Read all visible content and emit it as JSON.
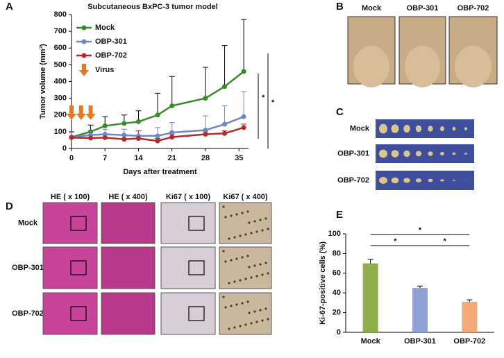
{
  "chart_data": [
    {
      "type": "line",
      "panel_label": "A",
      "title": "Subcutaneous BxPC-3 tumor model",
      "x_label": "Days after treatment",
      "y_label": "Tumor volume (mm³)",
      "x": [
        0,
        4,
        7,
        11,
        14,
        18,
        21,
        28,
        32,
        36
      ],
      "series": [
        {
          "name": "Mock",
          "color": "#3a8a2a",
          "error_color": "#000000",
          "values": [
            68,
            100,
            135,
            150,
            160,
            200,
            255,
            300,
            370,
            460
          ],
          "errors": [
            30,
            40,
            55,
            50,
            65,
            130,
            175,
            185,
            245,
            310
          ]
        },
        {
          "name": "OBP-301",
          "color": "#6f86c8",
          "error_color": "#6f86c8",
          "values": [
            68,
            80,
            85,
            80,
            75,
            75,
            95,
            110,
            145,
            190
          ],
          "errors": [
            30,
            25,
            30,
            35,
            30,
            50,
            60,
            85,
            110,
            150
          ]
        },
        {
          "name": "OBP-702",
          "color": "#b22a2a",
          "error_color": "#b22a2a",
          "values": [
            65,
            62,
            65,
            55,
            60,
            45,
            68,
            85,
            90,
            125
          ],
          "errors": [
            35,
            20,
            20,
            20,
            45,
            15,
            15,
            15,
            15,
            20
          ]
        }
      ],
      "xlim": [
        0,
        37
      ],
      "xticks": [
        0,
        7,
        14,
        21,
        28,
        35
      ],
      "ylim": [
        0,
        800
      ],
      "yticks": [
        0,
        100,
        200,
        300,
        400,
        500,
        600,
        700,
        800
      ],
      "virus_label": "Virus",
      "virus_days": [
        0,
        2,
        4
      ],
      "virus_color": "#e07b2a",
      "annotations": [
        "*",
        "*"
      ]
    },
    {
      "type": "bar",
      "panel_label": "E",
      "y_label": "Ki-67-positive cells (%)",
      "categories": [
        "Mock",
        "OBP-301",
        "OBP-702"
      ],
      "values": [
        70,
        45,
        31
      ],
      "errors": [
        4,
        2,
        2
      ],
      "colors": [
        "#8db04a",
        "#8fa1d6",
        "#f4a978"
      ],
      "ylim": [
        0,
        100
      ],
      "yticks": [
        0,
        20,
        40,
        60,
        80,
        100
      ],
      "annotations": [
        "*",
        "*",
        "*"
      ]
    }
  ],
  "panel_b": {
    "panel_label": "B",
    "columns": [
      "Mock",
      "OBP-301",
      "OBP-702"
    ]
  },
  "panel_c": {
    "panel_label": "C",
    "rows": [
      "Mock",
      "OBP-301",
      "OBP-702"
    ]
  },
  "panel_d": {
    "panel_label": "D",
    "columns": [
      "HE ( x 100)",
      "HE ( x 400)",
      "Ki67 ( x 100)",
      "Ki67 ( x 400)"
    ],
    "rows": [
      "Mock",
      "OBP-301",
      "OBP-702"
    ]
  }
}
